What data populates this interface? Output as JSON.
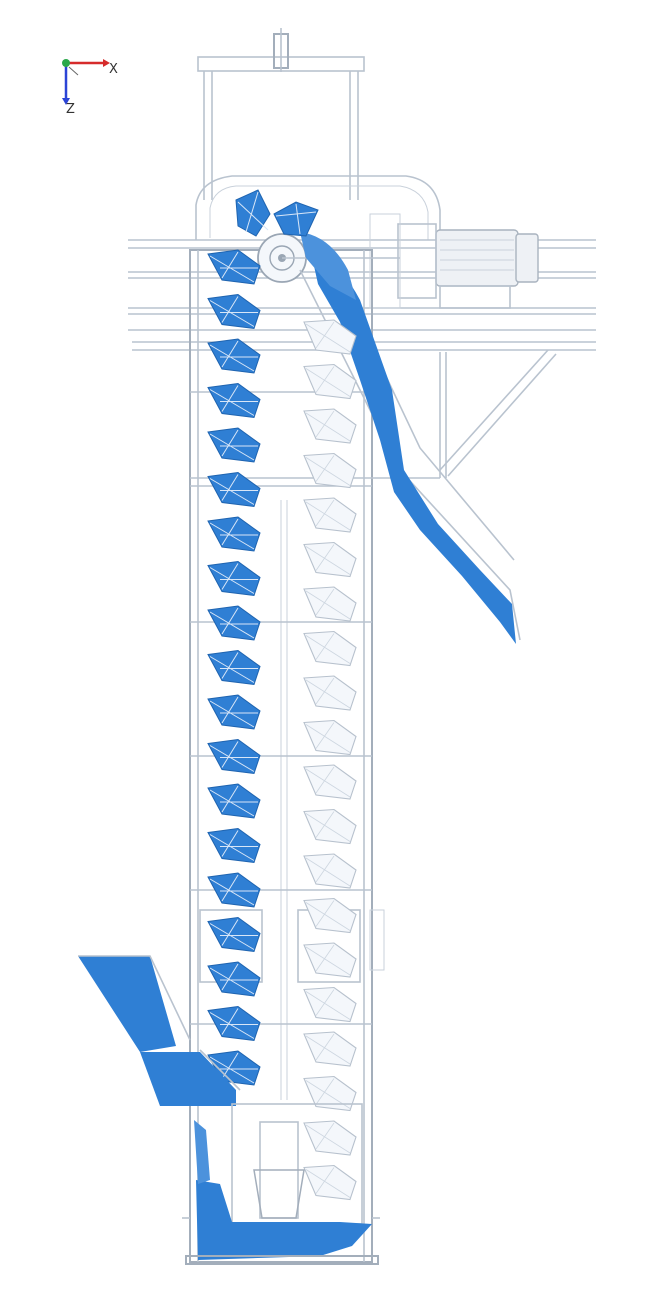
{
  "axis_triad": {
    "x_label": "X",
    "z_label": "Z",
    "x_color": "#d62b2b",
    "y_color": "#2aa84a",
    "z_color": "#2b44d6"
  },
  "colors": {
    "material": "#2f7fd4",
    "frame": "#b9c3cf",
    "background": "#ffffff"
  },
  "components": [
    "head-pulley",
    "drive-motor",
    "discharge-chute",
    "inlet-chute",
    "boot-section",
    "casing",
    "ascending-buckets",
    "descending-buckets",
    "support-bracket"
  ]
}
